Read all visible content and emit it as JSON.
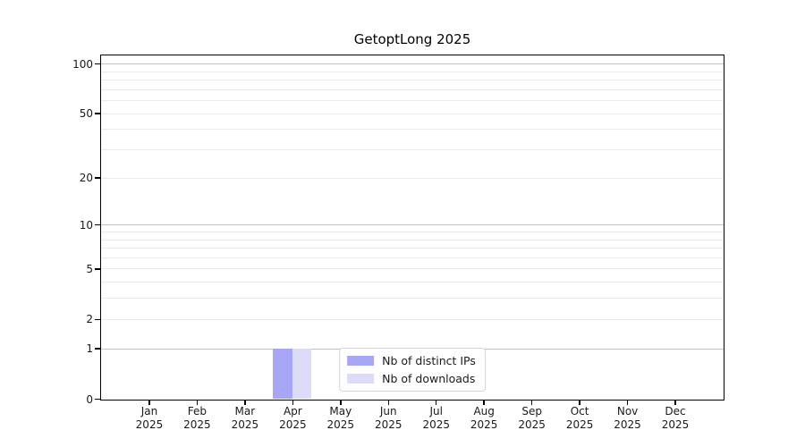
{
  "title": "GetoptLong 2025",
  "chart_data": {
    "type": "bar",
    "title": "GetoptLong 2025",
    "categories": [
      "Jan",
      "Feb",
      "Mar",
      "Apr",
      "May",
      "Jun",
      "Jul",
      "Aug",
      "Sep",
      "Oct",
      "Nov",
      "Dec"
    ],
    "x_year": "2025",
    "series": [
      {
        "name": "Nb of distinct IPs",
        "color": "#a6a6f4",
        "values": [
          0,
          0,
          0,
          1,
          0,
          0,
          0,
          0,
          0,
          0,
          0,
          0
        ]
      },
      {
        "name": "Nb of downloads",
        "color": "#dcdcf8",
        "values": [
          0,
          0,
          0,
          1,
          0,
          0,
          0,
          0,
          0,
          0,
          0,
          0
        ]
      }
    ],
    "xlabel": "",
    "ylabel": "",
    "yscale": "log1p",
    "ylim": [
      0,
      112
    ],
    "yticks": [
      100,
      50,
      20,
      10,
      5,
      2,
      1,
      0
    ],
    "major_gridlines": [
      1,
      10,
      100
    ],
    "minor_gridlines": [
      2,
      3,
      4,
      5,
      6,
      7,
      8,
      9,
      20,
      30,
      40,
      50,
      60,
      70,
      80,
      90
    ],
    "grid": "horizontal",
    "legend_position": "lower center"
  },
  "colors": {
    "bar_distinct_ips": "#a6a6f4",
    "bar_downloads": "#dcdcf8",
    "grid_major": "#c2c2c2",
    "grid_minor": "#ebebeb",
    "spine": "#000000",
    "text": "#1a1a1a",
    "legend_border": "#d5d5d5",
    "background": "#ffffff"
  }
}
